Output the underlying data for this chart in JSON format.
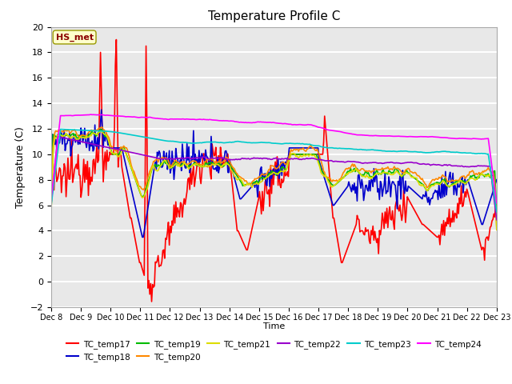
{
  "title": "Temperature Profile C",
  "xlabel": "Time",
  "ylabel": "Temperature (C)",
  "ylim": [
    -2,
    20
  ],
  "yticks": [
    -2,
    0,
    2,
    4,
    6,
    8,
    10,
    12,
    14,
    16,
    18,
    20
  ],
  "date_labels": [
    "Dec 8",
    "Dec 9",
    "Dec 10",
    "Dec 11",
    "Dec 12",
    "Dec 13",
    "Dec 14",
    "Dec 15",
    "Dec 16",
    "Dec 17",
    "Dec 18",
    "Dec 19",
    "Dec 20",
    "Dec 21",
    "Dec 22",
    "Dec 23"
  ],
  "n_points": 480,
  "background_color": "#e8e8e8",
  "plot_bg": "#e8e8e8",
  "annotation_text": "HS_met",
  "annotation_color": "#8B0000",
  "annotation_bg": "#ffffcc",
  "annotation_edge": "#999900",
  "series": [
    {
      "name": "TC_temp17",
      "color": "#ff0000",
      "lw": 1.2
    },
    {
      "name": "TC_temp18",
      "color": "#0000cc",
      "lw": 1.2
    },
    {
      "name": "TC_temp19",
      "color": "#00bb00",
      "lw": 1.2
    },
    {
      "name": "TC_temp20",
      "color": "#ff8800",
      "lw": 1.2
    },
    {
      "name": "TC_temp21",
      "color": "#dddd00",
      "lw": 1.2
    },
    {
      "name": "TC_temp22",
      "color": "#9900cc",
      "lw": 1.2
    },
    {
      "name": "TC_temp23",
      "color": "#00cccc",
      "lw": 1.2
    },
    {
      "name": "TC_temp24",
      "color": "#ff00ff",
      "lw": 1.2
    }
  ],
  "legend_ncol_row1": 6,
  "legend_ncol_row2": 2
}
